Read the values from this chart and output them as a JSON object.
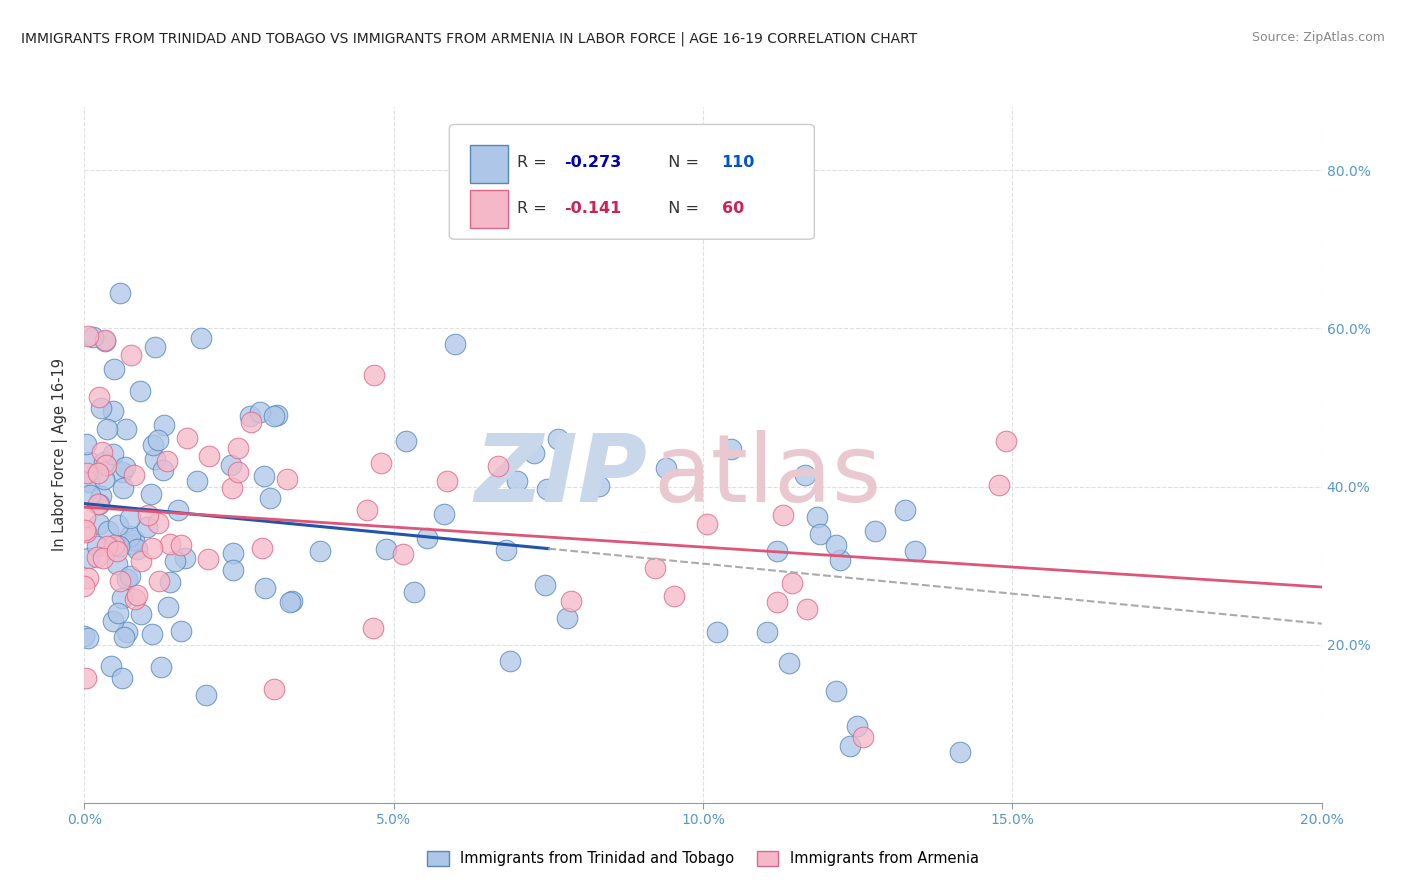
{
  "title": "IMMIGRANTS FROM TRINIDAD AND TOBAGO VS IMMIGRANTS FROM ARMENIA IN LABOR FORCE | AGE 16-19 CORRELATION CHART",
  "source": "Source: ZipAtlas.com",
  "ylabel": "In Labor Force | Age 16-19",
  "xlim": [
    0.0,
    0.2
  ],
  "ylim": [
    0.0,
    0.88
  ],
  "xticks": [
    0.0,
    0.05,
    0.1,
    0.15,
    0.2
  ],
  "yticks": [
    0.2,
    0.4,
    0.6,
    0.8
  ],
  "xticklabels": [
    "0.0%",
    "5.0%",
    "10.0%",
    "15.0%",
    "20.0%"
  ],
  "yticklabels": [
    "20.0%",
    "40.0%",
    "60.0%",
    "80.0%"
  ],
  "series1_label": "Immigrants from Trinidad and Tobago",
  "series2_label": "Immigrants from Armenia",
  "series1_color": "#aec6e8",
  "series2_color": "#f5b8c8",
  "series1_edge_color": "#5588bb",
  "series2_edge_color": "#dd6688",
  "series1_line_color": "#2255aa",
  "series2_line_color": "#dd5577",
  "R1": -0.273,
  "N1": 110,
  "R2": -0.141,
  "N2": 60,
  "legend_R_color": "#0000bb",
  "legend_R2_color": "#cc2255",
  "legend_N_color": "#0055cc",
  "legend_N2_color": "#cc2255",
  "watermark_zip_color": "#c8d8ea",
  "watermark_atlas_color": "#eac8d0",
  "background_color": "#ffffff",
  "grid_color": "#e0e0e0"
}
